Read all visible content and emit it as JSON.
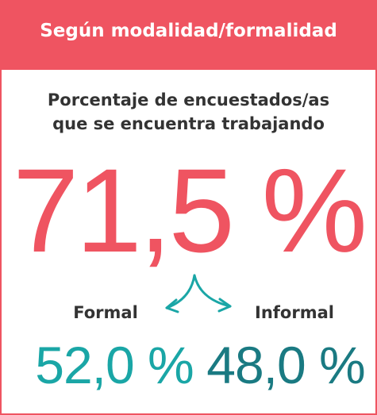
{
  "header": {
    "title": "Según modalidad/formalidad"
  },
  "subtitle": [
    "Porcentaje de encuestados/as",
    "que se encuentra trabajando"
  ],
  "total": "71,5 %",
  "breakdown": [
    {
      "label": "Formal",
      "value": "52,0 %"
    },
    {
      "label": "Informal",
      "value": "48,0 %"
    }
  ]
}
